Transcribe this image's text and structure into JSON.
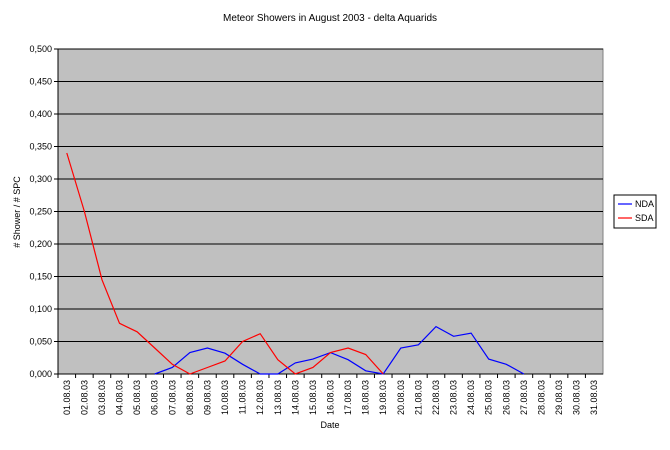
{
  "chart_data": {
    "type": "line",
    "title": "Meteor Showers in August 2003 - delta Aquarids",
    "x_label": "Date",
    "y_label": "# Shower / # SPC",
    "categories": [
      "01.08.03",
      "02.08.03",
      "03.08.03",
      "04.08.03",
      "05.08.03",
      "06.08.03",
      "07.08.03",
      "08.08.03",
      "09.08.03",
      "10.08.03",
      "11.08.03",
      "12.08.03",
      "13.08.03",
      "14.08.03",
      "15.08.03",
      "16.08.03",
      "17.08.03",
      "18.08.03",
      "19.08.03",
      "20.08.03",
      "21.08.03",
      "22.08.03",
      "23.08.03",
      "24.08.03",
      "25.08.03",
      "26.08.03",
      "27.08.03",
      "28.08.03",
      "29.08.03",
      "30.08.03",
      "31.08.03"
    ],
    "series": [
      {
        "name": "NDA",
        "color": "#0000ff",
        "values": [
          null,
          null,
          null,
          null,
          null,
          0,
          0.01,
          0.033,
          0.04,
          0.032,
          0.015,
          0,
          0,
          0.017,
          0.023,
          0.033,
          0.022,
          0.005,
          0,
          0.04,
          0.045,
          0.073,
          0.058,
          0.063,
          0.023,
          0.015,
          0,
          null,
          null,
          null,
          null
        ]
      },
      {
        "name": "SDA",
        "color": "#ff0000",
        "values": [
          0.34,
          0.25,
          0.145,
          0.078,
          0.065,
          0.04,
          0.015,
          0,
          0.01,
          0.02,
          0.05,
          0.062,
          0.022,
          0,
          0.01,
          0.033,
          0.04,
          0.03,
          0,
          null,
          null,
          null,
          null,
          null,
          null,
          null,
          null,
          null,
          null,
          null,
          null
        ]
      }
    ],
    "ylim": [
      0,
      0.5
    ],
    "yticks": [
      {
        "value": 0,
        "label": "0,000"
      },
      {
        "value": 0.05,
        "label": "0,050"
      },
      {
        "value": 0.1,
        "label": "0,100"
      },
      {
        "value": 0.15,
        "label": "0,150"
      },
      {
        "value": 0.2,
        "label": "0,200"
      },
      {
        "value": 0.25,
        "label": "0,250"
      },
      {
        "value": 0.3,
        "label": "0,300"
      },
      {
        "value": 0.35,
        "label": "0,350"
      },
      {
        "value": 0.4,
        "label": "0,400"
      },
      {
        "value": 0.45,
        "label": "0,450"
      },
      {
        "value": 0.5,
        "label": "0,500"
      }
    ],
    "grid": true,
    "legend": "right",
    "plot_background": "#c0c0c0"
  }
}
